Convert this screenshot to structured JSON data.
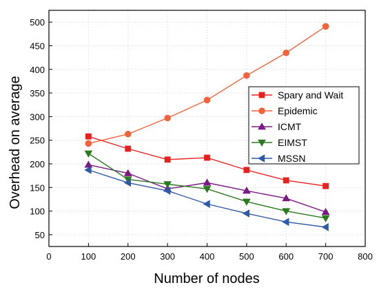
{
  "chart_data": {
    "type": "line",
    "xlabel": "Number of nodes",
    "ylabel": "Overhead on average",
    "xlim": [
      0,
      800
    ],
    "ylim": [
      25,
      525
    ],
    "xticks": [
      "0",
      "100",
      "200",
      "300",
      "400",
      "500",
      "600",
      "700",
      "800"
    ],
    "yticks": [
      "50",
      "100",
      "150",
      "200",
      "250",
      "300",
      "350",
      "400",
      "450",
      "500"
    ],
    "grid": true,
    "legend_position": "right",
    "series": [
      {
        "name": "Spary and Wait",
        "color": "#e8201e",
        "marker": "square",
        "x": [
          100,
          200,
          300,
          400,
          500,
          600,
          700
        ],
        "y": [
          258,
          232,
          209,
          213,
          187,
          165,
          153
        ]
      },
      {
        "name": "Epidemic",
        "color": "#f4623a",
        "marker": "circle",
        "x": [
          100,
          200,
          300,
          400,
          500,
          600,
          700
        ],
        "y": [
          243,
          263,
          297,
          335,
          387,
          435,
          491
        ]
      },
      {
        "name": "ICMT",
        "color": "#7a1a84",
        "marker": "triangle-up",
        "x": [
          100,
          200,
          300,
          400,
          500,
          600,
          700
        ],
        "y": [
          198,
          180,
          147,
          160,
          143,
          127,
          98
        ]
      },
      {
        "name": "EIMST",
        "color": "#2a7a1f",
        "marker": "triangle-down",
        "x": [
          100,
          200,
          300,
          400,
          500,
          600,
          700
        ],
        "y": [
          222,
          167,
          157,
          147,
          120,
          100,
          85
        ]
      },
      {
        "name": "MSSN",
        "color": "#2f5aa8",
        "marker": "triangle-left",
        "x": [
          100,
          200,
          300,
          400,
          500,
          600,
          700
        ],
        "y": [
          187,
          160,
          143,
          115,
          95,
          77,
          66
        ]
      }
    ]
  }
}
